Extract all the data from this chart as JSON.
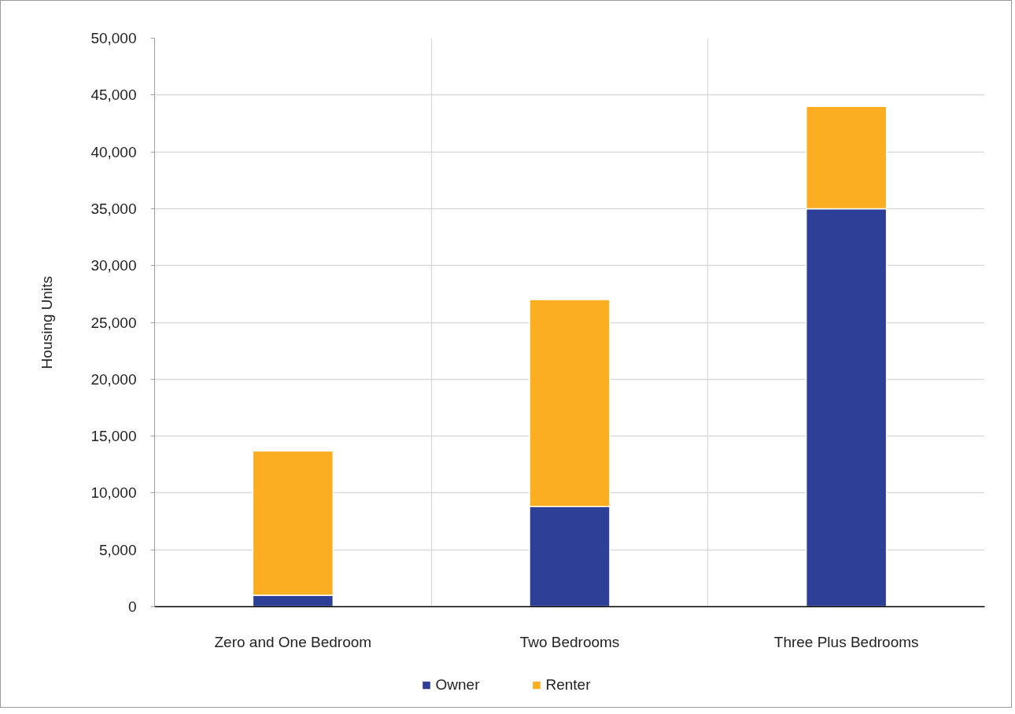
{
  "chart_data": {
    "type": "bar",
    "stacked": true,
    "ylabel": "Housing Units",
    "categories": [
      "Zero and One Bedroom",
      "Two Bedrooms",
      "Three Plus Bedrooms"
    ],
    "series": [
      {
        "name": "Owner",
        "color": "#2e3f97",
        "values": [
          1000,
          8800,
          35000
        ]
      },
      {
        "name": "Renter",
        "color": "#fbae22",
        "values": [
          12700,
          18200,
          9000
        ]
      }
    ],
    "ylim": [
      0,
      50000
    ],
    "yticks": [
      0,
      {
        "value": 5000,
        "label": "5,000"
      },
      {
        "value": 10000,
        "label": "10,000"
      },
      {
        "value": 15000,
        "label": "15,000"
      },
      {
        "value": 20000,
        "label": "20,000"
      },
      {
        "value": 25000,
        "label": "25,000"
      },
      {
        "value": 30000,
        "label": "30,000"
      },
      {
        "value": 35000,
        "label": "35,000"
      },
      {
        "value": 40000,
        "label": "40,000"
      },
      {
        "value": 45000,
        "label": "45,000"
      },
      {
        "value": 50000,
        "label": "50,000"
      }
    ],
    "grid": true,
    "legend": "bottom"
  }
}
